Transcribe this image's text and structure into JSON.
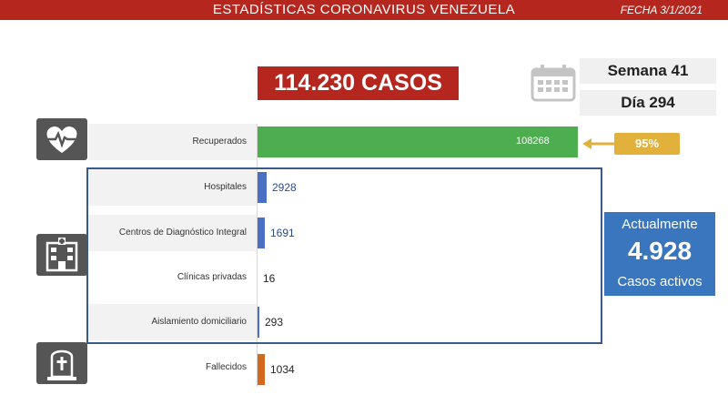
{
  "header": {
    "title": "ESTADÍSTICAS CORONAVIRUS VENEZUELA",
    "date": "FECHA 3/1/2021"
  },
  "total": {
    "label": "114.230 CASOS"
  },
  "week": {
    "label": "Semana 41"
  },
  "day": {
    "label": "Día 294"
  },
  "percent_recovered": {
    "label": "95%"
  },
  "active_cases": {
    "top": "Actualmente",
    "value": "4.928",
    "bottom": "Casos activos",
    "color": "#3a76bd"
  },
  "icons": {
    "calendar": "calendar-icon",
    "recovered": "heart-pulse-icon",
    "hospitalized": "hospital-icon",
    "deceased": "tombstone-icon"
  },
  "chart_data": {
    "type": "bar",
    "orientation": "horizontal",
    "categories": [
      "Recuperados",
      "Hospitales",
      "Centros de Diagnóstico Integral",
      "Clínicas privadas",
      "Aislamiento domiciliario",
      "Fallecidos"
    ],
    "values": [
      108268,
      2928,
      1691,
      16,
      293,
      1034
    ],
    "value_labels": [
      "108268",
      "2928",
      "1691",
      "16",
      "293",
      "1034"
    ],
    "colors": [
      "#4cae4f",
      "#4a6fc4",
      "#4a6fc4",
      "#4a6fc4",
      "#4a6fc4",
      "#d2691e"
    ],
    "label_colors": [
      "#ffffff",
      "#2b4a8a",
      "#2b4a8a",
      "#222222",
      "#222222",
      "#222222"
    ],
    "xlim": [
      0,
      108268
    ]
  }
}
